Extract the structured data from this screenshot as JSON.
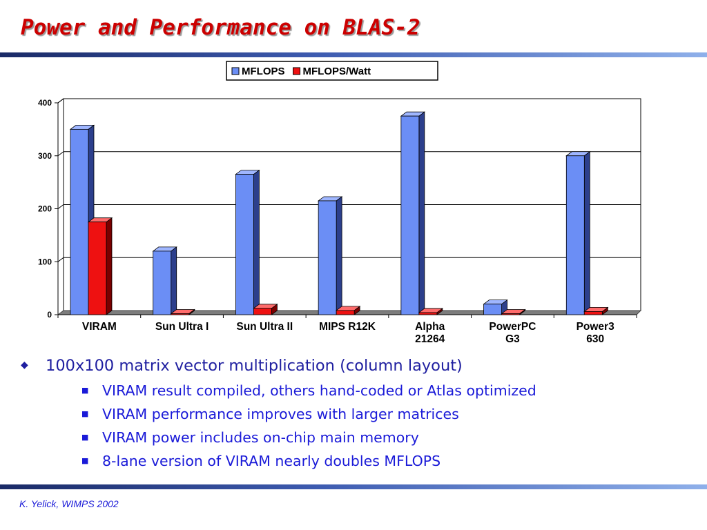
{
  "slide": {
    "title": "Power and Performance on BLAS-2",
    "footer": "K. Yelick, WIMPS 2002"
  },
  "bullets": {
    "main": "100x100 matrix vector multiplication (column layout)",
    "sub": [
      "VIRAM result compiled, others hand-coded or Atlas optimized",
      "VIRAM performance improves with larger matrices",
      "VIRAM power includes on-chip main memory",
      "8-lane version of VIRAM nearly doubles MFLOPS"
    ]
  },
  "chart_data": {
    "type": "bar",
    "categories": [
      [
        "VIRAM"
      ],
      [
        "Sun Ultra I"
      ],
      [
        "Sun Ultra II"
      ],
      [
        "MIPS R12K"
      ],
      [
        "Alpha",
        "21264"
      ],
      [
        "PowerPC",
        "G3"
      ],
      [
        "Power3",
        "630"
      ]
    ],
    "series": [
      {
        "name": "MFLOPS",
        "values": [
          350,
          120,
          265,
          215,
          375,
          20,
          300
        ]
      },
      {
        "name": "MFLOPS/Watt",
        "values": [
          175,
          2,
          12,
          8,
          4,
          2,
          6
        ]
      }
    ],
    "ylim": [
      0,
      400
    ],
    "yticks": [
      0,
      100,
      200,
      300,
      400
    ],
    "grid": true,
    "legend_position": "top-center",
    "colors": {
      "MFLOPS": {
        "front": "#6b8ef5",
        "side": "#2c3f8c",
        "top": "#9fb6ff"
      },
      "MFLOPS/Watt": {
        "front": "#ee1111",
        "side": "#7a0000",
        "top": "#ff6b6b"
      }
    },
    "xlabel": "",
    "ylabel": ""
  }
}
